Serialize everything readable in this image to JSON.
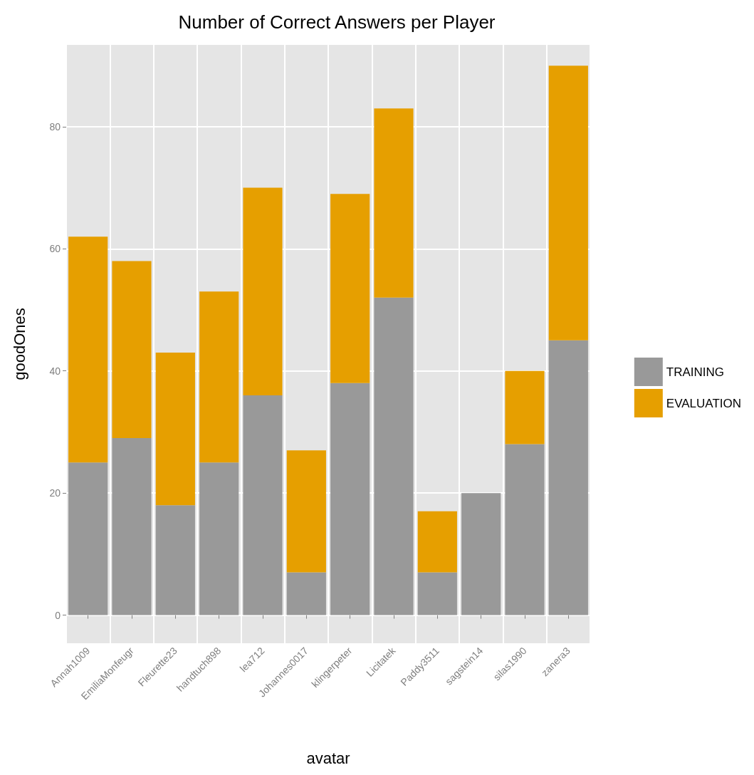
{
  "chart_data": {
    "type": "bar",
    "title": "Number of Correct Answers per Player",
    "xlabel": "avatar",
    "ylabel": "goodOnes",
    "legend": "right",
    "grid": true,
    "stacked": true,
    "categories": [
      "Annah1009",
      "EmiliaMonfeugr",
      "Fleurette23",
      "handtuch898",
      "lea712",
      "Johannes0017",
      "klingerpeter",
      "Licitatek",
      "Paddy3511",
      "sagstein14",
      "silas1990",
      "zanera3"
    ],
    "series": [
      {
        "name": "TRAINING",
        "color": "#999999",
        "values": [
          25,
          29,
          18,
          25,
          36,
          7,
          38,
          52,
          7,
          20,
          28,
          45
        ]
      },
      {
        "name": "EVALUATION",
        "color": "#e69f00",
        "values": [
          37,
          29,
          25,
          28,
          34,
          20,
          31,
          31,
          10,
          0,
          12,
          45
        ]
      }
    ],
    "ylim": [
      -4.6,
      93.4
    ],
    "yticks": [
      0,
      20,
      40,
      60,
      80
    ]
  }
}
